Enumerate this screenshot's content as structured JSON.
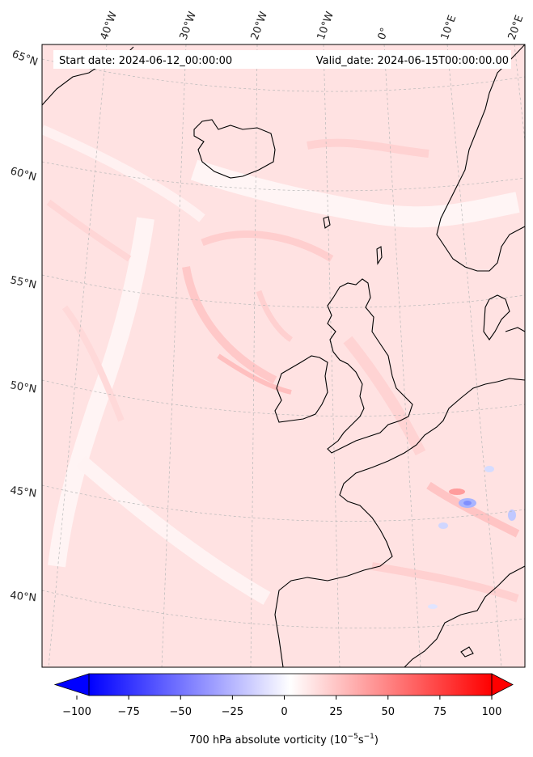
{
  "header": {
    "start_date": "Start date: 2024-06-12_00:00:00",
    "valid_date": "Valid_date: 2024-06-15T00:00:00.00"
  },
  "graticule": {
    "lon_labels": [
      "40°W",
      "30°W",
      "20°W",
      "10°W",
      "0°",
      "10°E",
      "20°E"
    ],
    "lat_labels": [
      "65°N",
      "60°N",
      "55°N",
      "50°N",
      "45°N",
      "40°N"
    ]
  },
  "colorbar": {
    "title": "700 hPa absolute vorticity (10",
    "title_exp1": "−5",
    "title_mid": "s",
    "title_exp2": "−1",
    "title_end": ")",
    "ticks": [
      "−100",
      "−75",
      "−50",
      "−25",
      "0",
      "25",
      "50",
      "75",
      "100"
    ],
    "tick_values": [
      -100,
      -75,
      -50,
      -25,
      0,
      25,
      50,
      75,
      100
    ],
    "min": -100,
    "max": 100,
    "levels": 40,
    "low_color": "#0000ff",
    "mid_color": "#ffffff",
    "high_color": "#ff0000"
  },
  "colors": {
    "background_field": "#ffe4e4",
    "coastline": "#000000",
    "gridline": "#bbbbbb"
  }
}
